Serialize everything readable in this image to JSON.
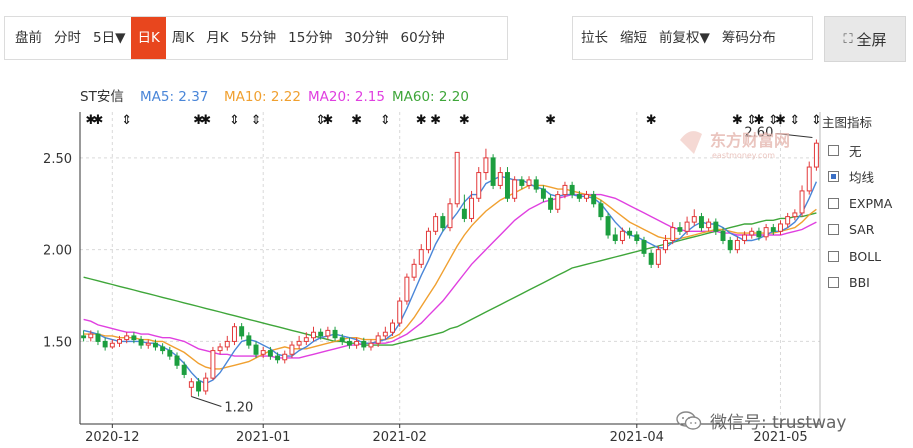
{
  "toolbar": {
    "left": [
      "盘前",
      "分时",
      "5日▼",
      "日K",
      "周K",
      "月K",
      "5分钟",
      "15分钟",
      "30分钟",
      "60分钟"
    ],
    "active_index": 3,
    "right": [
      "拉长",
      "缩短",
      "前复权▼",
      "筹码分布"
    ],
    "fullscreen": "全屏"
  },
  "side_panel": {
    "title": "主图指标",
    "options": [
      {
        "label": "无",
        "checked": false
      },
      {
        "label": "均线",
        "checked": true
      },
      {
        "label": "EXPMA",
        "checked": false
      },
      {
        "label": "SAR",
        "checked": false
      },
      {
        "label": "BOLL",
        "checked": false
      },
      {
        "label": "BBI",
        "checked": false
      }
    ]
  },
  "watermark": {
    "brand": "东方财富网",
    "brand_url": "eastmoney.com",
    "wechat": "微信号: trustway"
  },
  "colors": {
    "up": "#e2393a",
    "down": "#1c9e3f",
    "ma5": "#4a86d8",
    "ma10": "#f0a030",
    "ma20": "#e040e0",
    "ma60": "#3fa63a",
    "grid": "#d9d9d9"
  },
  "chart_data": {
    "type": "candlestick",
    "stock": "ST安信",
    "legend": [
      {
        "label": "MA5: 2.37",
        "color": "#4a86d8"
      },
      {
        "label": "MA10: 2.22",
        "color": "#f0a030"
      },
      {
        "label": "MA20: 2.15",
        "color": "#e040e0"
      },
      {
        "label": "MA60: 2.20",
        "color": "#3fa63a"
      }
    ],
    "y_ticks": [
      1.5,
      2.0,
      2.5
    ],
    "ylim": [
      1.05,
      2.75
    ],
    "x_labels": [
      {
        "label": "2020-12",
        "index": 4
      },
      {
        "label": "2021-01",
        "index": 25
      },
      {
        "label": "2021-02",
        "index": 44
      },
      {
        "label": "2021-04",
        "index": 77
      },
      {
        "label": "2021-05",
        "index": 97
      }
    ],
    "annotations": [
      {
        "label": "1.20",
        "index": 15,
        "value": 1.2
      },
      {
        "label": "2.60",
        "index": 102,
        "value": 2.6
      }
    ],
    "marker_indices": [
      1,
      2,
      6,
      16,
      17,
      21,
      24,
      33,
      34,
      38,
      42,
      47,
      49,
      53,
      65,
      79,
      91,
      93,
      94,
      96,
      97,
      99,
      102
    ],
    "candles": [
      [
        1.53,
        1.52,
        1.56,
        1.5
      ],
      [
        1.52,
        1.54,
        1.56,
        1.5
      ],
      [
        1.54,
        1.5,
        1.56,
        1.48
      ],
      [
        1.5,
        1.47,
        1.52,
        1.45
      ],
      [
        1.47,
        1.49,
        1.51,
        1.46
      ],
      [
        1.49,
        1.51,
        1.53,
        1.47
      ],
      [
        1.51,
        1.53,
        1.55,
        1.49
      ],
      [
        1.53,
        1.51,
        1.55,
        1.49
      ],
      [
        1.51,
        1.48,
        1.53,
        1.46
      ],
      [
        1.48,
        1.49,
        1.51,
        1.46
      ],
      [
        1.49,
        1.47,
        1.51,
        1.45
      ],
      [
        1.47,
        1.45,
        1.49,
        1.43
      ],
      [
        1.45,
        1.42,
        1.47,
        1.4
      ],
      [
        1.42,
        1.37,
        1.44,
        1.35
      ],
      [
        1.37,
        1.32,
        1.39,
        1.3
      ],
      [
        1.25,
        1.28,
        1.3,
        1.2
      ],
      [
        1.28,
        1.23,
        1.3,
        1.2
      ],
      [
        1.23,
        1.3,
        1.33,
        1.21
      ],
      [
        1.3,
        1.45,
        1.47,
        1.29
      ],
      [
        1.45,
        1.47,
        1.49,
        1.43
      ],
      [
        1.47,
        1.5,
        1.53,
        1.45
      ],
      [
        1.5,
        1.58,
        1.6,
        1.48
      ],
      [
        1.58,
        1.53,
        1.6,
        1.51
      ],
      [
        1.53,
        1.48,
        1.55,
        1.46
      ],
      [
        1.48,
        1.43,
        1.5,
        1.41
      ],
      [
        1.43,
        1.45,
        1.47,
        1.41
      ],
      [
        1.45,
        1.42,
        1.47,
        1.4
      ],
      [
        1.42,
        1.4,
        1.44,
        1.38
      ],
      [
        1.4,
        1.43,
        1.45,
        1.38
      ],
      [
        1.43,
        1.48,
        1.5,
        1.41
      ],
      [
        1.48,
        1.5,
        1.53,
        1.46
      ],
      [
        1.5,
        1.52,
        1.55,
        1.48
      ],
      [
        1.52,
        1.55,
        1.58,
        1.5
      ],
      [
        1.55,
        1.53,
        1.57,
        1.51
      ],
      [
        1.53,
        1.56,
        1.58,
        1.51
      ],
      [
        1.56,
        1.52,
        1.58,
        1.5
      ],
      [
        1.52,
        1.5,
        1.54,
        1.48
      ],
      [
        1.5,
        1.48,
        1.52,
        1.46
      ],
      [
        1.48,
        1.5,
        1.52,
        1.46
      ],
      [
        1.5,
        1.47,
        1.52,
        1.45
      ],
      [
        1.47,
        1.49,
        1.51,
        1.45
      ],
      [
        1.49,
        1.53,
        1.55,
        1.47
      ],
      [
        1.53,
        1.55,
        1.58,
        1.51
      ],
      [
        1.55,
        1.6,
        1.62,
        1.53
      ],
      [
        1.6,
        1.72,
        1.74,
        1.58
      ],
      [
        1.72,
        1.85,
        1.87,
        1.7
      ],
      [
        1.85,
        1.92,
        1.95,
        1.83
      ],
      [
        1.92,
        2.0,
        2.03,
        1.9
      ],
      [
        2.0,
        2.1,
        2.12,
        1.98
      ],
      [
        2.1,
        2.18,
        2.2,
        2.08
      ],
      [
        2.18,
        2.12,
        2.2,
        2.1
      ],
      [
        2.12,
        2.25,
        2.28,
        2.1
      ],
      [
        2.25,
        2.53,
        2.53,
        2.23
      ],
      [
        2.22,
        2.17,
        2.3,
        2.15
      ],
      [
        2.17,
        2.28,
        2.32,
        2.15
      ],
      [
        2.28,
        2.42,
        2.45,
        2.26
      ],
      [
        2.42,
        2.5,
        2.55,
        2.38
      ],
      [
        2.5,
        2.35,
        2.52,
        2.33
      ],
      [
        2.35,
        2.42,
        2.45,
        2.33
      ],
      [
        2.42,
        2.28,
        2.45,
        2.26
      ],
      [
        2.28,
        2.38,
        2.4,
        2.26
      ],
      [
        2.38,
        2.35,
        2.4,
        2.33
      ],
      [
        2.35,
        2.38,
        2.4,
        2.33
      ],
      [
        2.38,
        2.33,
        2.4,
        2.31
      ],
      [
        2.33,
        2.28,
        2.35,
        2.26
      ],
      [
        2.28,
        2.22,
        2.3,
        2.2
      ],
      [
        2.22,
        2.3,
        2.32,
        2.2
      ],
      [
        2.3,
        2.35,
        2.37,
        2.28
      ],
      [
        2.35,
        2.3,
        2.37,
        2.28
      ],
      [
        2.3,
        2.28,
        2.32,
        2.26
      ],
      [
        2.28,
        2.3,
        2.32,
        2.26
      ],
      [
        2.3,
        2.25,
        2.32,
        2.23
      ],
      [
        2.25,
        2.18,
        2.27,
        2.16
      ],
      [
        2.18,
        2.08,
        2.2,
        2.06
      ],
      [
        2.08,
        2.05,
        2.12,
        2.03
      ],
      [
        2.05,
        2.1,
        2.12,
        2.03
      ],
      [
        2.1,
        2.08,
        2.12,
        2.06
      ],
      [
        2.08,
        2.05,
        2.1,
        2.03
      ],
      [
        2.05,
        1.98,
        2.07,
        1.96
      ],
      [
        1.98,
        1.92,
        2.0,
        1.9
      ],
      [
        1.92,
        2.0,
        2.02,
        1.9
      ],
      [
        2.0,
        2.05,
        2.08,
        1.98
      ],
      [
        2.05,
        2.12,
        2.15,
        2.03
      ],
      [
        2.12,
        2.1,
        2.15,
        2.08
      ],
      [
        2.1,
        2.15,
        2.18,
        2.08
      ],
      [
        2.15,
        2.18,
        2.22,
        2.13
      ],
      [
        2.18,
        2.12,
        2.2,
        2.1
      ],
      [
        2.12,
        2.15,
        2.17,
        2.1
      ],
      [
        2.15,
        2.1,
        2.17,
        2.08
      ],
      [
        2.1,
        2.05,
        2.12,
        2.03
      ],
      [
        2.05,
        2.0,
        2.07,
        1.98
      ],
      [
        2.0,
        2.05,
        2.07,
        1.98
      ],
      [
        2.05,
        2.08,
        2.1,
        2.03
      ],
      [
        2.08,
        2.1,
        2.12,
        2.06
      ],
      [
        2.1,
        2.07,
        2.12,
        2.05
      ],
      [
        2.07,
        2.12,
        2.14,
        2.05
      ],
      [
        2.12,
        2.1,
        2.14,
        2.08
      ],
      [
        2.1,
        2.14,
        2.16,
        2.08
      ],
      [
        2.14,
        2.18,
        2.2,
        2.12
      ],
      [
        2.18,
        2.2,
        2.22,
        2.16
      ],
      [
        2.2,
        2.32,
        2.35,
        2.18
      ],
      [
        2.32,
        2.45,
        2.48,
        2.3
      ],
      [
        2.45,
        2.58,
        2.6,
        2.43
      ]
    ],
    "ma5": [
      1.56,
      1.55,
      1.54,
      1.52,
      1.51,
      1.5,
      1.5,
      1.5,
      1.5,
      1.49,
      1.49,
      1.47,
      1.45,
      1.42,
      1.38,
      1.33,
      1.29,
      1.27,
      1.29,
      1.33,
      1.39,
      1.45,
      1.5,
      1.51,
      1.5,
      1.48,
      1.46,
      1.43,
      1.42,
      1.42,
      1.45,
      1.47,
      1.5,
      1.52,
      1.53,
      1.54,
      1.53,
      1.52,
      1.51,
      1.49,
      1.49,
      1.5,
      1.51,
      1.54,
      1.6,
      1.68,
      1.77,
      1.86,
      1.94,
      2.03,
      2.1,
      2.15,
      2.2,
      2.26,
      2.3,
      2.3,
      2.36,
      2.38,
      2.4,
      2.39,
      2.38,
      2.38,
      2.36,
      2.34,
      2.33,
      2.3,
      2.29,
      2.3,
      2.3,
      2.29,
      2.29,
      2.28,
      2.25,
      2.2,
      2.15,
      2.11,
      2.08,
      2.07,
      2.05,
      2.03,
      2.01,
      2.01,
      2.04,
      2.06,
      2.1,
      2.13,
      2.15,
      2.14,
      2.14,
      2.12,
      2.09,
      2.07,
      2.05,
      2.05,
      2.06,
      2.08,
      2.1,
      2.1,
      2.12,
      2.15,
      2.2,
      2.28,
      2.37
    ],
    "ma10": [
      1.54,
      1.54,
      1.54,
      1.53,
      1.53,
      1.52,
      1.52,
      1.52,
      1.51,
      1.51,
      1.5,
      1.5,
      1.48,
      1.46,
      1.44,
      1.41,
      1.38,
      1.36,
      1.35,
      1.35,
      1.36,
      1.37,
      1.38,
      1.39,
      1.41,
      1.43,
      1.45,
      1.46,
      1.47,
      1.46,
      1.46,
      1.46,
      1.47,
      1.48,
      1.49,
      1.5,
      1.51,
      1.52,
      1.52,
      1.51,
      1.51,
      1.51,
      1.51,
      1.52,
      1.54,
      1.58,
      1.63,
      1.69,
      1.75,
      1.81,
      1.88,
      1.95,
      2.02,
      2.08,
      2.13,
      2.17,
      2.21,
      2.24,
      2.27,
      2.29,
      2.31,
      2.33,
      2.35,
      2.35,
      2.35,
      2.34,
      2.33,
      2.33,
      2.32,
      2.31,
      2.3,
      2.29,
      2.27,
      2.24,
      2.21,
      2.18,
      2.15,
      2.13,
      2.11,
      2.09,
      2.07,
      2.06,
      2.06,
      2.06,
      2.07,
      2.08,
      2.09,
      2.1,
      2.11,
      2.11,
      2.1,
      2.09,
      2.09,
      2.09,
      2.09,
      2.09,
      2.09,
      2.1,
      2.11,
      2.12,
      2.15,
      2.19,
      2.22
    ],
    "ma20": [
      1.62,
      1.61,
      1.59,
      1.58,
      1.57,
      1.56,
      1.55,
      1.55,
      1.54,
      1.54,
      1.53,
      1.52,
      1.52,
      1.51,
      1.5,
      1.48,
      1.46,
      1.45,
      1.44,
      1.43,
      1.43,
      1.42,
      1.42,
      1.42,
      1.42,
      1.42,
      1.42,
      1.41,
      1.41,
      1.41,
      1.41,
      1.42,
      1.43,
      1.44,
      1.45,
      1.46,
      1.47,
      1.48,
      1.48,
      1.49,
      1.49,
      1.49,
      1.49,
      1.5,
      1.52,
      1.54,
      1.57,
      1.6,
      1.64,
      1.68,
      1.72,
      1.77,
      1.82,
      1.87,
      1.92,
      1.96,
      2.0,
      2.04,
      2.08,
      2.12,
      2.16,
      2.19,
      2.22,
      2.24,
      2.26,
      2.27,
      2.28,
      2.29,
      2.3,
      2.3,
      2.3,
      2.3,
      2.3,
      2.29,
      2.28,
      2.26,
      2.24,
      2.22,
      2.2,
      2.18,
      2.16,
      2.14,
      2.12,
      2.11,
      2.1,
      2.1,
      2.1,
      2.1,
      2.1,
      2.09,
      2.09,
      2.08,
      2.08,
      2.08,
      2.08,
      2.08,
      2.08,
      2.08,
      2.09,
      2.1,
      2.11,
      2.13,
      2.15
    ],
    "ma60": [
      1.85,
      1.84,
      1.83,
      1.82,
      1.81,
      1.8,
      1.79,
      1.78,
      1.77,
      1.76,
      1.75,
      1.74,
      1.73,
      1.72,
      1.71,
      1.7,
      1.69,
      1.68,
      1.67,
      1.66,
      1.65,
      1.64,
      1.63,
      1.62,
      1.61,
      1.6,
      1.59,
      1.58,
      1.57,
      1.56,
      1.55,
      1.54,
      1.53,
      1.52,
      1.51,
      1.5,
      1.5,
      1.49,
      1.49,
      1.48,
      1.48,
      1.48,
      1.48,
      1.48,
      1.49,
      1.5,
      1.51,
      1.52,
      1.53,
      1.54,
      1.55,
      1.57,
      1.58,
      1.6,
      1.62,
      1.64,
      1.66,
      1.68,
      1.7,
      1.72,
      1.74,
      1.76,
      1.78,
      1.8,
      1.82,
      1.84,
      1.86,
      1.88,
      1.9,
      1.91,
      1.92,
      1.93,
      1.94,
      1.95,
      1.96,
      1.97,
      1.98,
      1.99,
      2.0,
      2.01,
      2.02,
      2.03,
      2.04,
      2.05,
      2.06,
      2.07,
      2.08,
      2.09,
      2.1,
      2.11,
      2.12,
      2.13,
      2.14,
      2.14,
      2.15,
      2.16,
      2.16,
      2.17,
      2.17,
      2.18,
      2.18,
      2.19,
      2.2
    ]
  }
}
